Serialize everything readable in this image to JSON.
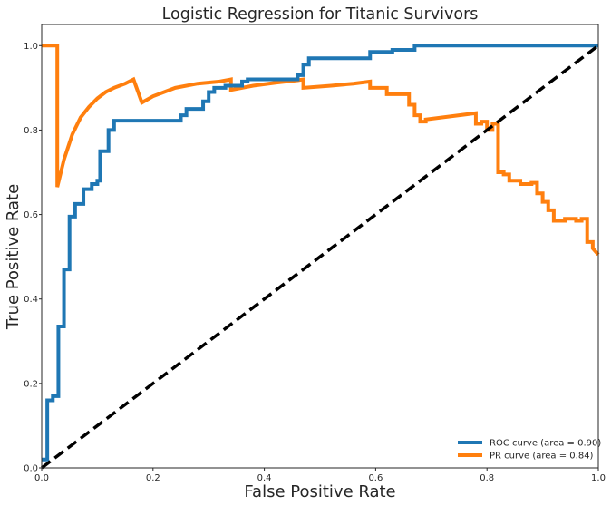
{
  "chart_data": {
    "type": "line",
    "title": "Logistic Regression for Titanic Survivors",
    "xlabel": "False Positive Rate",
    "ylabel": "True Positive Rate",
    "xlim": [
      0,
      1
    ],
    "ylim": [
      0,
      1.05
    ],
    "grid": false,
    "legend_position": "bottom-right",
    "xticks": [
      0.0,
      0.2,
      0.4,
      0.6,
      0.8,
      1.0
    ],
    "yticks": [
      0.0,
      0.2,
      0.4,
      0.6,
      0.8,
      1.0
    ],
    "xtick_labels": [
      "0.0",
      "0.2",
      "0.4",
      "0.6",
      "0.8",
      "1.0"
    ],
    "ytick_labels": [
      "0.0",
      "0.2",
      "0.4",
      "0.6",
      "0.8",
      "1.0"
    ],
    "series": [
      {
        "name": "ROC curve (area = 0.90)",
        "color": "#1f77b4",
        "step": true,
        "x": [
          0,
          0.01,
          0.01,
          0.02,
          0.02,
          0.03,
          0.03,
          0.04,
          0.04,
          0.05,
          0.05,
          0.06,
          0.06,
          0.075,
          0.075,
          0.09,
          0.09,
          0.1,
          0.1,
          0.105,
          0.105,
          0.12,
          0.12,
          0.13,
          0.13,
          0.25,
          0.25,
          0.26,
          0.26,
          0.29,
          0.29,
          0.3,
          0.3,
          0.31,
          0.31,
          0.33,
          0.33,
          0.36,
          0.36,
          0.37,
          0.37,
          0.46,
          0.46,
          0.47,
          0.47,
          0.48,
          0.48,
          0.59,
          0.59,
          0.63,
          0.63,
          0.67,
          0.67,
          1.0
        ],
        "y": [
          0.02,
          0.02,
          0.16,
          0.16,
          0.17,
          0.17,
          0.335,
          0.335,
          0.47,
          0.47,
          0.595,
          0.595,
          0.625,
          0.625,
          0.66,
          0.66,
          0.672,
          0.672,
          0.68,
          0.68,
          0.75,
          0.75,
          0.8,
          0.8,
          0.822,
          0.822,
          0.835,
          0.835,
          0.85,
          0.85,
          0.868,
          0.868,
          0.89,
          0.89,
          0.9,
          0.9,
          0.905,
          0.905,
          0.915,
          0.915,
          0.92,
          0.92,
          0.93,
          0.93,
          0.955,
          0.955,
          0.97,
          0.97,
          0.985,
          0.985,
          0.99,
          0.99,
          1.0,
          1.0
        ]
      },
      {
        "name": "PR curve (area = 0.84)",
        "color": "#ff7f0e",
        "step": false,
        "x": [
          0,
          0.028,
          0.028,
          0.04,
          0.055,
          0.07,
          0.085,
          0.1,
          0.115,
          0.13,
          0.15,
          0.165,
          0.18,
          0.2,
          0.24,
          0.28,
          0.32,
          0.34,
          0.34,
          0.38,
          0.42,
          0.46,
          0.47,
          0.47,
          0.52,
          0.56,
          0.59,
          0.59,
          0.62,
          0.62,
          0.66,
          0.66,
          0.67,
          0.67,
          0.68,
          0.68,
          0.69,
          0.69,
          0.75,
          0.78,
          0.78,
          0.79,
          0.79,
          0.8,
          0.8,
          0.81,
          0.81,
          0.82,
          0.82,
          0.83,
          0.83,
          0.84,
          0.84,
          0.86,
          0.86,
          0.88,
          0.88,
          0.89,
          0.89,
          0.9,
          0.9,
          0.91,
          0.91,
          0.92,
          0.92,
          0.94,
          0.94,
          0.96,
          0.96,
          0.97,
          0.97,
          0.98,
          0.98,
          0.99,
          0.99,
          1.0
        ],
        "y": [
          1.0,
          1.0,
          0.665,
          0.73,
          0.79,
          0.83,
          0.855,
          0.875,
          0.89,
          0.9,
          0.91,
          0.92,
          0.865,
          0.88,
          0.9,
          0.91,
          0.915,
          0.92,
          0.895,
          0.905,
          0.912,
          0.918,
          0.92,
          0.9,
          0.905,
          0.91,
          0.915,
          0.9,
          0.9,
          0.885,
          0.885,
          0.86,
          0.86,
          0.835,
          0.835,
          0.82,
          0.82,
          0.825,
          0.835,
          0.84,
          0.815,
          0.815,
          0.82,
          0.82,
          0.8,
          0.8,
          0.815,
          0.815,
          0.7,
          0.7,
          0.695,
          0.695,
          0.68,
          0.68,
          0.672,
          0.672,
          0.675,
          0.675,
          0.65,
          0.65,
          0.63,
          0.63,
          0.61,
          0.61,
          0.585,
          0.585,
          0.59,
          0.59,
          0.585,
          0.585,
          0.59,
          0.59,
          0.535,
          0.535,
          0.52,
          0.505
        ]
      },
      {
        "name": "",
        "color": "#000000",
        "dashed": true,
        "x": [
          0,
          1
        ],
        "y": [
          0,
          1
        ]
      }
    ]
  }
}
